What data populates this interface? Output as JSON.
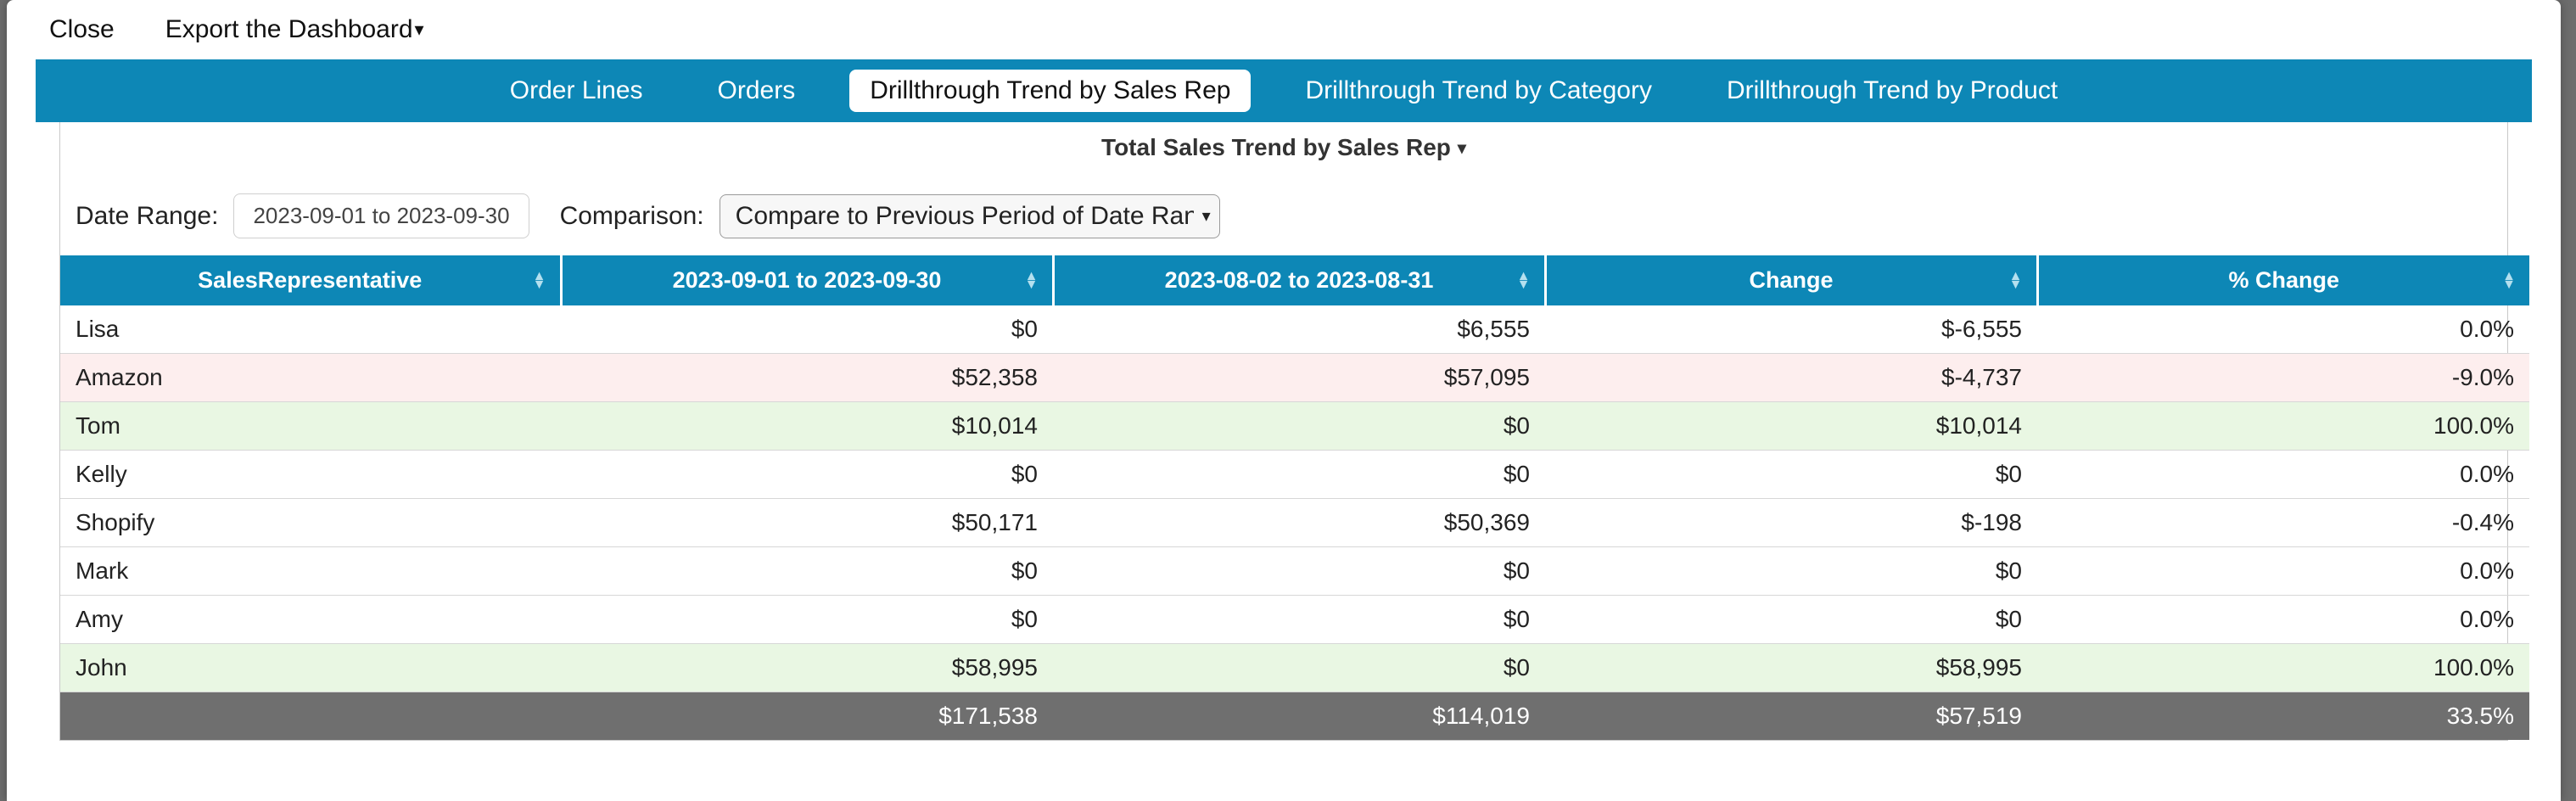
{
  "topbar": {
    "close": "Close",
    "export": "Export the Dashboard"
  },
  "tabs": [
    {
      "label": "Order Lines",
      "active": false
    },
    {
      "label": "Orders",
      "active": false
    },
    {
      "label": "Drillthrough Trend by Sales Rep",
      "active": true
    },
    {
      "label": "Drillthrough Trend by Category",
      "active": false
    },
    {
      "label": "Drillthrough Trend by Product",
      "active": false
    }
  ],
  "panel": {
    "title": "Total Sales Trend by Sales Rep"
  },
  "controls": {
    "date_range_label": "Date Range:",
    "date_range_value": "2023-09-01 to 2023-09-30",
    "comparison_label": "Comparison:",
    "comparison_value": "Compare to Previous Period of Date Range"
  },
  "table": {
    "columns": [
      {
        "label": "SalesRepresentative",
        "align": "left"
      },
      {
        "label": "2023-09-01 to 2023-09-30",
        "align": "right"
      },
      {
        "label": "2023-08-02 to 2023-08-31",
        "align": "right"
      },
      {
        "label": "Change",
        "align": "right"
      },
      {
        "label": "% Change",
        "align": "right"
      }
    ],
    "rows": [
      {
        "cells": [
          "Lisa",
          "$0",
          "$6,555",
          "$-6,555",
          "0.0%"
        ],
        "tone": "none"
      },
      {
        "cells": [
          "Amazon",
          "$52,358",
          "$57,095",
          "$-4,737",
          "-9.0%"
        ],
        "tone": "pink"
      },
      {
        "cells": [
          "Tom",
          "$10,014",
          "$0",
          "$10,014",
          "100.0%"
        ],
        "tone": "green"
      },
      {
        "cells": [
          "Kelly",
          "$0",
          "$0",
          "$0",
          "0.0%"
        ],
        "tone": "none"
      },
      {
        "cells": [
          "Shopify",
          "$50,171",
          "$50,369",
          "$-198",
          "-0.4%"
        ],
        "tone": "none"
      },
      {
        "cells": [
          "Mark",
          "$0",
          "$0",
          "$0",
          "0.0%"
        ],
        "tone": "none"
      },
      {
        "cells": [
          "Amy",
          "$0",
          "$0",
          "$0",
          "0.0%"
        ],
        "tone": "none"
      },
      {
        "cells": [
          "John",
          "$58,995",
          "$0",
          "$58,995",
          "100.0%"
        ],
        "tone": "green"
      }
    ],
    "totals": [
      "",
      "$171,538",
      "$114,019",
      "$57,519",
      "33.5%"
    ]
  },
  "colors": {
    "header_bg": "#0d87b6",
    "row_green": "#e9f7e3",
    "row_pink": "#fdeeee",
    "totals_bg": "#6f6f6f"
  }
}
